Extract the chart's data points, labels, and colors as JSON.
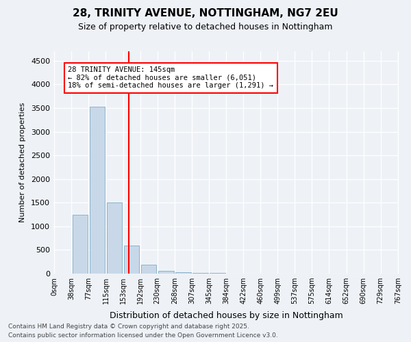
{
  "title1": "28, TRINITY AVENUE, NOTTINGHAM, NG7 2EU",
  "title2": "Size of property relative to detached houses in Nottingham",
  "xlabel": "Distribution of detached houses by size in Nottingham",
  "ylabel": "Number of detached properties",
  "bar_color": "#c8d8e8",
  "bar_edge_color": "#8ab4cc",
  "bin_labels": [
    "0sqm",
    "38sqm",
    "77sqm",
    "115sqm",
    "153sqm",
    "192sqm",
    "230sqm",
    "268sqm",
    "307sqm",
    "345sqm",
    "384sqm",
    "422sqm",
    "460sqm",
    "499sqm",
    "537sqm",
    "575sqm",
    "614sqm",
    "652sqm",
    "690sqm",
    "729sqm",
    "767sqm"
  ],
  "bar_values": [
    0,
    1250,
    3530,
    1500,
    600,
    185,
    55,
    22,
    12,
    8,
    5,
    3,
    2,
    2,
    1,
    1,
    1,
    0,
    0,
    0
  ],
  "red_line_x": 3.82,
  "annotation_text": "28 TRINITY AVENUE: 145sqm\n← 82% of detached houses are smaller (6,051)\n18% of semi-detached houses are larger (1,291) →",
  "ylim": [
    0,
    4700
  ],
  "yticks": [
    0,
    500,
    1000,
    1500,
    2000,
    2500,
    3000,
    3500,
    4000,
    4500
  ],
  "footer1": "Contains HM Land Registry data © Crown copyright and database right 2025.",
  "footer2": "Contains public sector information licensed under the Open Government Licence v3.0.",
  "background_color": "#eef2f7",
  "grid_color": "#ffffff"
}
